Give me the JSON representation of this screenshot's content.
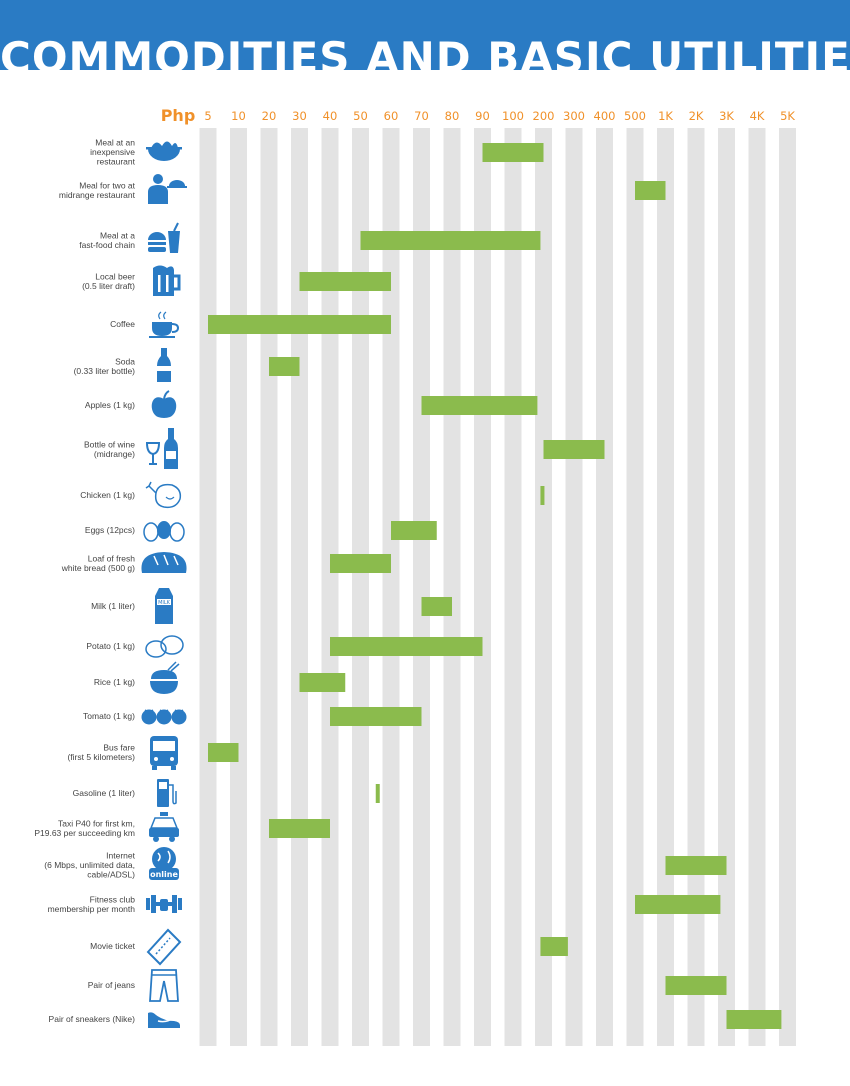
{
  "header": {
    "title": "COMMODITIES AND BASIC UTILITIES:"
  },
  "colors": {
    "banner": "#2a7bc4",
    "bar": "#8bbb4d",
    "column": "#e3e3e3",
    "tick": "#f0912a",
    "icon": "#2a7bc4",
    "label": "#444444"
  },
  "chart_data": {
    "type": "bar",
    "orientation": "horizontal-range",
    "xlabel": "Php",
    "x_ticks": [
      "5",
      "10",
      "20",
      "30",
      "40",
      "50",
      "60",
      "70",
      "80",
      "90",
      "100",
      "200",
      "300",
      "400",
      "500",
      "1K",
      "2K",
      "3K",
      "4K",
      "5K"
    ],
    "x_tick_values": [
      5,
      10,
      20,
      30,
      40,
      50,
      60,
      70,
      80,
      90,
      100,
      200,
      300,
      400,
      500,
      1000,
      2000,
      3000,
      4000,
      5000
    ],
    "grid": true,
    "items": [
      {
        "label": [
          "Meal at an",
          "inexpensive",
          "restaurant"
        ],
        "icon": "noodle-bowl-icon",
        "min": 90,
        "max": 200
      },
      {
        "label": [
          "Meal for two at",
          "midrange restaurant"
        ],
        "icon": "waiter-icon",
        "min": 500,
        "max": 1000
      },
      {
        "label": [
          "Meal at a",
          "fast-food chain"
        ],
        "icon": "burger-drink-icon",
        "min": 50,
        "max": 190
      },
      {
        "label": [
          "Local beer",
          "(0.5 liter draft)"
        ],
        "icon": "beer-mug-icon",
        "min": 30,
        "max": 60
      },
      {
        "label": [
          "Coffee"
        ],
        "icon": "coffee-cup-icon",
        "min": 5,
        "max": 60
      },
      {
        "label": [
          "Soda",
          "(0.33 liter bottle)"
        ],
        "icon": "soda-bottle-icon",
        "min": 20,
        "max": 30
      },
      {
        "label": [
          "Apples (1 kg)"
        ],
        "icon": "apple-icon",
        "min": 70,
        "max": 180
      },
      {
        "label": [
          "Bottle of wine",
          "(midrange)"
        ],
        "icon": "wine-icon",
        "min": 200,
        "max": 400
      },
      {
        "label": [
          "Chicken (1 kg)"
        ],
        "icon": "chicken-icon",
        "min": 190,
        "max": 200
      },
      {
        "label": [
          "Eggs (12pcs)"
        ],
        "icon": "eggs-icon",
        "min": 60,
        "max": 75
      },
      {
        "label": [
          "Loaf of fresh",
          "white bread (500 g)"
        ],
        "icon": "bread-icon",
        "min": 40,
        "max": 60
      },
      {
        "label": [
          "Milk (1 liter)"
        ],
        "icon": "milk-carton-icon",
        "min": 70,
        "max": 80
      },
      {
        "label": [
          "Potato (1 kg)"
        ],
        "icon": "potato-icon",
        "min": 40,
        "max": 90
      },
      {
        "label": [
          "Rice (1 kg)"
        ],
        "icon": "rice-bowl-icon",
        "min": 30,
        "max": 45
      },
      {
        "label": [
          "Tomato (1 kg)"
        ],
        "icon": "tomato-icon",
        "min": 40,
        "max": 70
      },
      {
        "label": [
          "Bus fare",
          "(first 5 kilometers)"
        ],
        "icon": "bus-icon",
        "min": 5,
        "max": 10
      },
      {
        "label": [
          "Gasoline (1 liter)"
        ],
        "icon": "fuel-pump-icon",
        "min": 55,
        "max": 56
      },
      {
        "label": [
          "Taxi P40 for first km,",
          "P19.63 per succeeding km"
        ],
        "icon": "taxi-icon",
        "min": 20,
        "max": 40
      },
      {
        "label": [
          "Internet",
          "(6 Mbps, unlimited data,",
          "cable/ADSL)"
        ],
        "icon": "online-globe-icon",
        "min": 1000,
        "max": 3000
      },
      {
        "label": [
          "Fitness club",
          "membership per month"
        ],
        "icon": "dumbbell-icon",
        "min": 500,
        "max": 2800
      },
      {
        "label": [
          "Movie ticket"
        ],
        "icon": "ticket-icon",
        "min": 190,
        "max": 280
      },
      {
        "label": [
          "Pair of jeans"
        ],
        "icon": "jeans-icon",
        "min": 1000,
        "max": 3000
      },
      {
        "label": [
          "Pair of sneakers (Nike)"
        ],
        "icon": "sneaker-icon",
        "min": 3000,
        "max": 4800
      }
    ]
  }
}
